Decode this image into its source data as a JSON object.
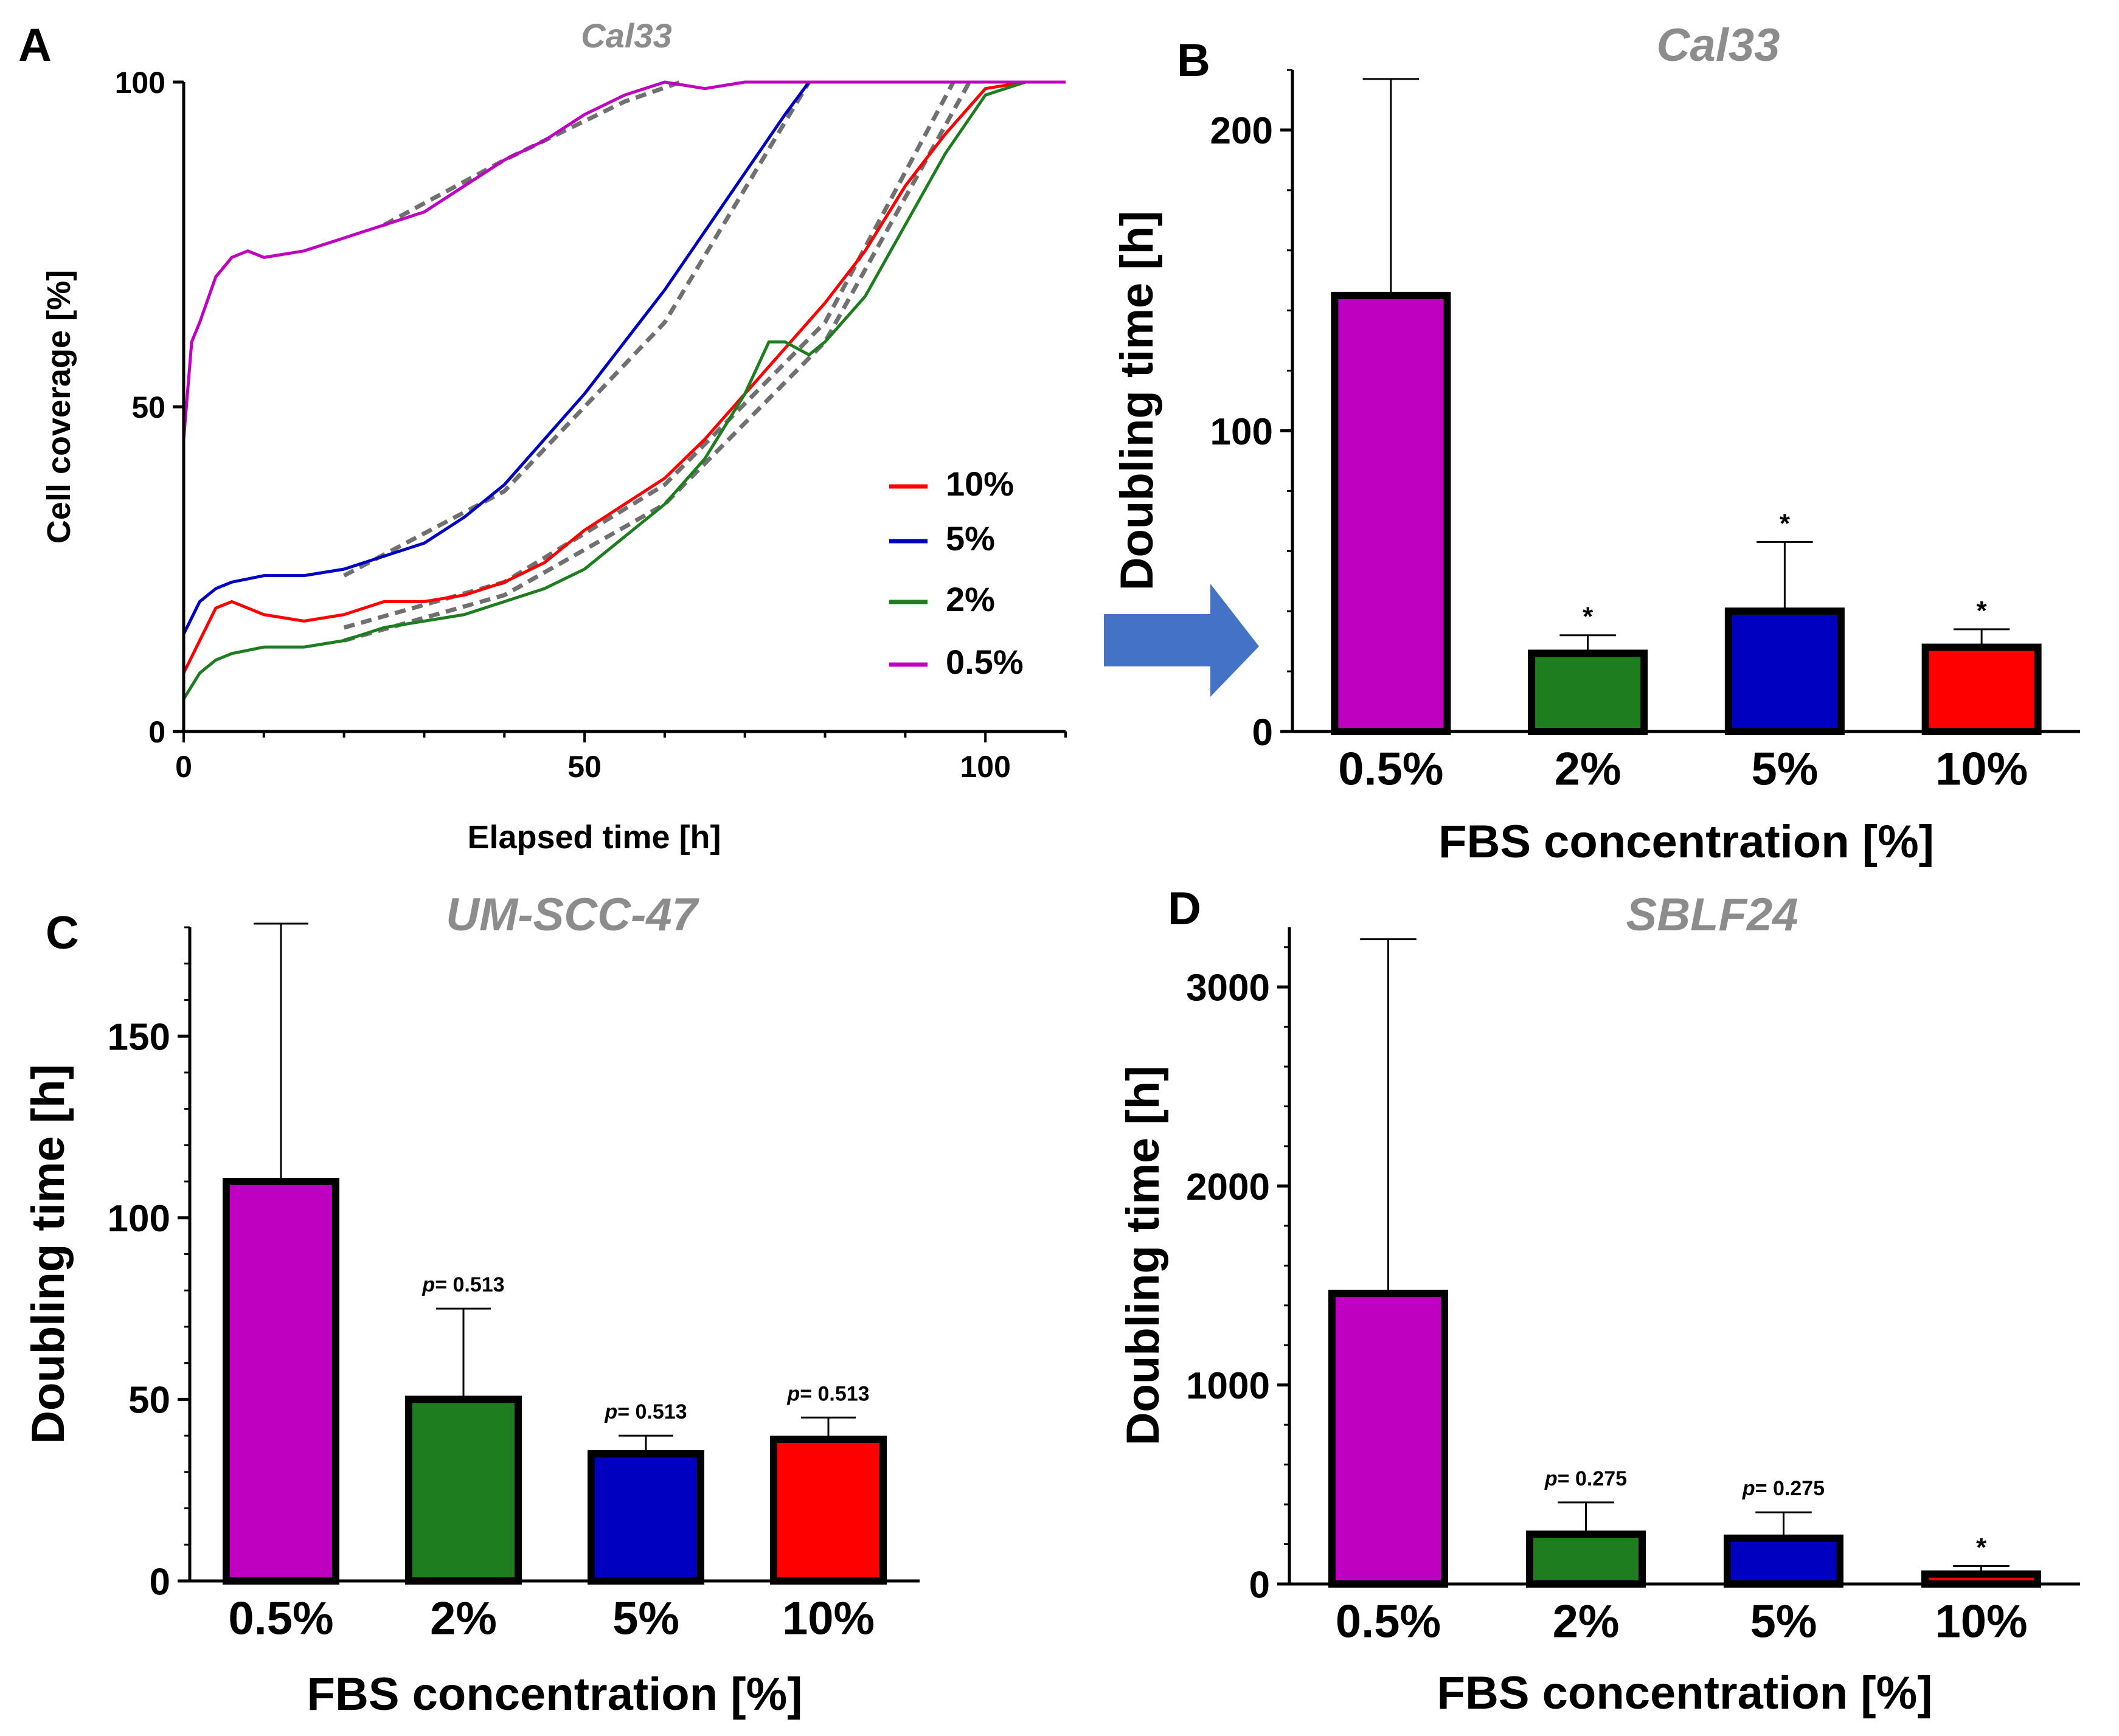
{
  "panels": {
    "A": {
      "letter": "A"
    },
    "B": {
      "letter": "B"
    },
    "C": {
      "letter": "C"
    },
    "D": {
      "letter": "D"
    }
  },
  "colors": {
    "p05": "#c000c0",
    "p2": "#1e7d1e",
    "p5": "#0000c0",
    "p10": "#ff0000",
    "fit": "#707070",
    "title": "#8c8c8c",
    "arrow": "#4472c4"
  },
  "chart_data": [
    {
      "panel": "A",
      "type": "line",
      "title": "Cal33",
      "xlabel": "Elapsed time [h]",
      "ylabel": "Cell coverage [%]",
      "xlim": [
        0,
        110
      ],
      "ylim": [
        0,
        100
      ],
      "xticks": [
        0,
        50,
        100
      ],
      "yticks": [
        0,
        50,
        100
      ],
      "legend_position": "right-middle",
      "series": [
        {
          "name": "10%",
          "color": "#ff0000",
          "x": [
            0,
            2,
            4,
            6,
            8,
            10,
            15,
            20,
            25,
            30,
            35,
            40,
            45,
            50,
            55,
            60,
            65,
            70,
            75,
            80,
            85,
            90,
            95,
            100,
            105,
            110
          ],
          "y": [
            9,
            14,
            19,
            20,
            19,
            18,
            17,
            18,
            20,
            20,
            21,
            23,
            26,
            31,
            35,
            39,
            45,
            52,
            59,
            66,
            74,
            84,
            92,
            99,
            100,
            100
          ]
        },
        {
          "name": "5%",
          "color": "#0000c0",
          "x": [
            0,
            2,
            4,
            6,
            10,
            15,
            20,
            25,
            30,
            35,
            40,
            45,
            50,
            55,
            60,
            65,
            70,
            75,
            78,
            80,
            90,
            100,
            110
          ],
          "y": [
            15,
            20,
            22,
            23,
            24,
            24,
            25,
            27,
            29,
            33,
            38,
            45,
            52,
            60,
            68,
            77,
            86,
            95,
            100,
            100,
            100,
            100,
            100
          ]
        },
        {
          "name": "2%",
          "color": "#1e7d1e",
          "x": [
            0,
            2,
            4,
            6,
            10,
            15,
            20,
            25,
            30,
            35,
            40,
            45,
            50,
            55,
            60,
            65,
            70,
            73,
            75,
            78,
            80,
            85,
            90,
            95,
            100,
            105,
            110
          ],
          "y": [
            5,
            9,
            11,
            12,
            13,
            13,
            14,
            16,
            17,
            18,
            20,
            22,
            25,
            30,
            35,
            42,
            52,
            60,
            60,
            58,
            60,
            67,
            78,
            89,
            98,
            100,
            100
          ]
        },
        {
          "name": "0.5%",
          "color": "#c000c0",
          "x": [
            0,
            1,
            2,
            4,
            6,
            8,
            10,
            15,
            20,
            25,
            30,
            35,
            40,
            45,
            50,
            55,
            60,
            65,
            70,
            80,
            90,
            100,
            110
          ],
          "y": [
            45,
            60,
            63,
            70,
            73,
            74,
            73,
            74,
            76,
            78,
            80,
            84,
            88,
            91,
            95,
            98,
            100,
            99,
            100,
            100,
            100,
            100,
            100
          ]
        }
      ],
      "fits": [
        {
          "for": "10%",
          "x": [
            20,
            40,
            60,
            80,
            96
          ],
          "y": [
            16,
            23,
            38,
            63,
            100
          ]
        },
        {
          "for": "5%",
          "x": [
            20,
            40,
            60,
            78
          ],
          "y": [
            24,
            37,
            63,
            100
          ]
        },
        {
          "for": "2%",
          "x": [
            20,
            40,
            60,
            80,
            98
          ],
          "y": [
            14,
            21,
            35,
            60,
            100
          ]
        },
        {
          "for": "0.5%",
          "x": [
            25,
            40,
            55,
            62
          ],
          "y": [
            78,
            88,
            97,
            100
          ]
        }
      ]
    },
    {
      "panel": "B",
      "type": "bar",
      "title": "Cal33",
      "xlabel": "FBS concentration [%]",
      "ylabel": "Doubling time [h]",
      "ylim": [
        0,
        220
      ],
      "yticks": [
        0,
        100,
        200
      ],
      "categories": [
        "0.5%",
        "2%",
        "5%",
        "10%"
      ],
      "values": [
        145,
        26,
        40,
        28
      ],
      "errors": [
        72,
        6,
        23,
        6
      ],
      "annotations": [
        "",
        "*",
        "*",
        "*"
      ]
    },
    {
      "panel": "C",
      "type": "bar",
      "title": "UM-SCC-47",
      "xlabel": "FBS concentration [%]",
      "ylabel": "Doubling time [h]",
      "ylim": [
        0,
        180
      ],
      "yticks": [
        0,
        50,
        100,
        150
      ],
      "categories": [
        "0.5%",
        "2%",
        "5%",
        "10%"
      ],
      "values": [
        110,
        50,
        35,
        39
      ],
      "errors": [
        71,
        25,
        5,
        6
      ],
      "annotations": [
        "",
        {
          "p": "p",
          "rest": "= 0.513"
        },
        {
          "p": "p",
          "rest": "= 0.513"
        },
        {
          "p": "p",
          "rest": "= 0.513"
        }
      ]
    },
    {
      "panel": "D",
      "type": "bar",
      "title": "SBLF24",
      "xlabel": "FBS concentration [%]",
      "ylabel": "Doubling time [h]",
      "ylim": [
        0,
        3300
      ],
      "yticks": [
        0,
        1000,
        2000,
        3000
      ],
      "categories": [
        "0.5%",
        "2%",
        "5%",
        "10%"
      ],
      "values": [
        1460,
        250,
        230,
        50
      ],
      "errors": [
        1780,
        160,
        130,
        40
      ],
      "annotations": [
        "",
        {
          "p": "p",
          "rest": "= 0.275"
        },
        {
          "p": "p",
          "rest": "= 0.275"
        },
        "*"
      ]
    }
  ]
}
